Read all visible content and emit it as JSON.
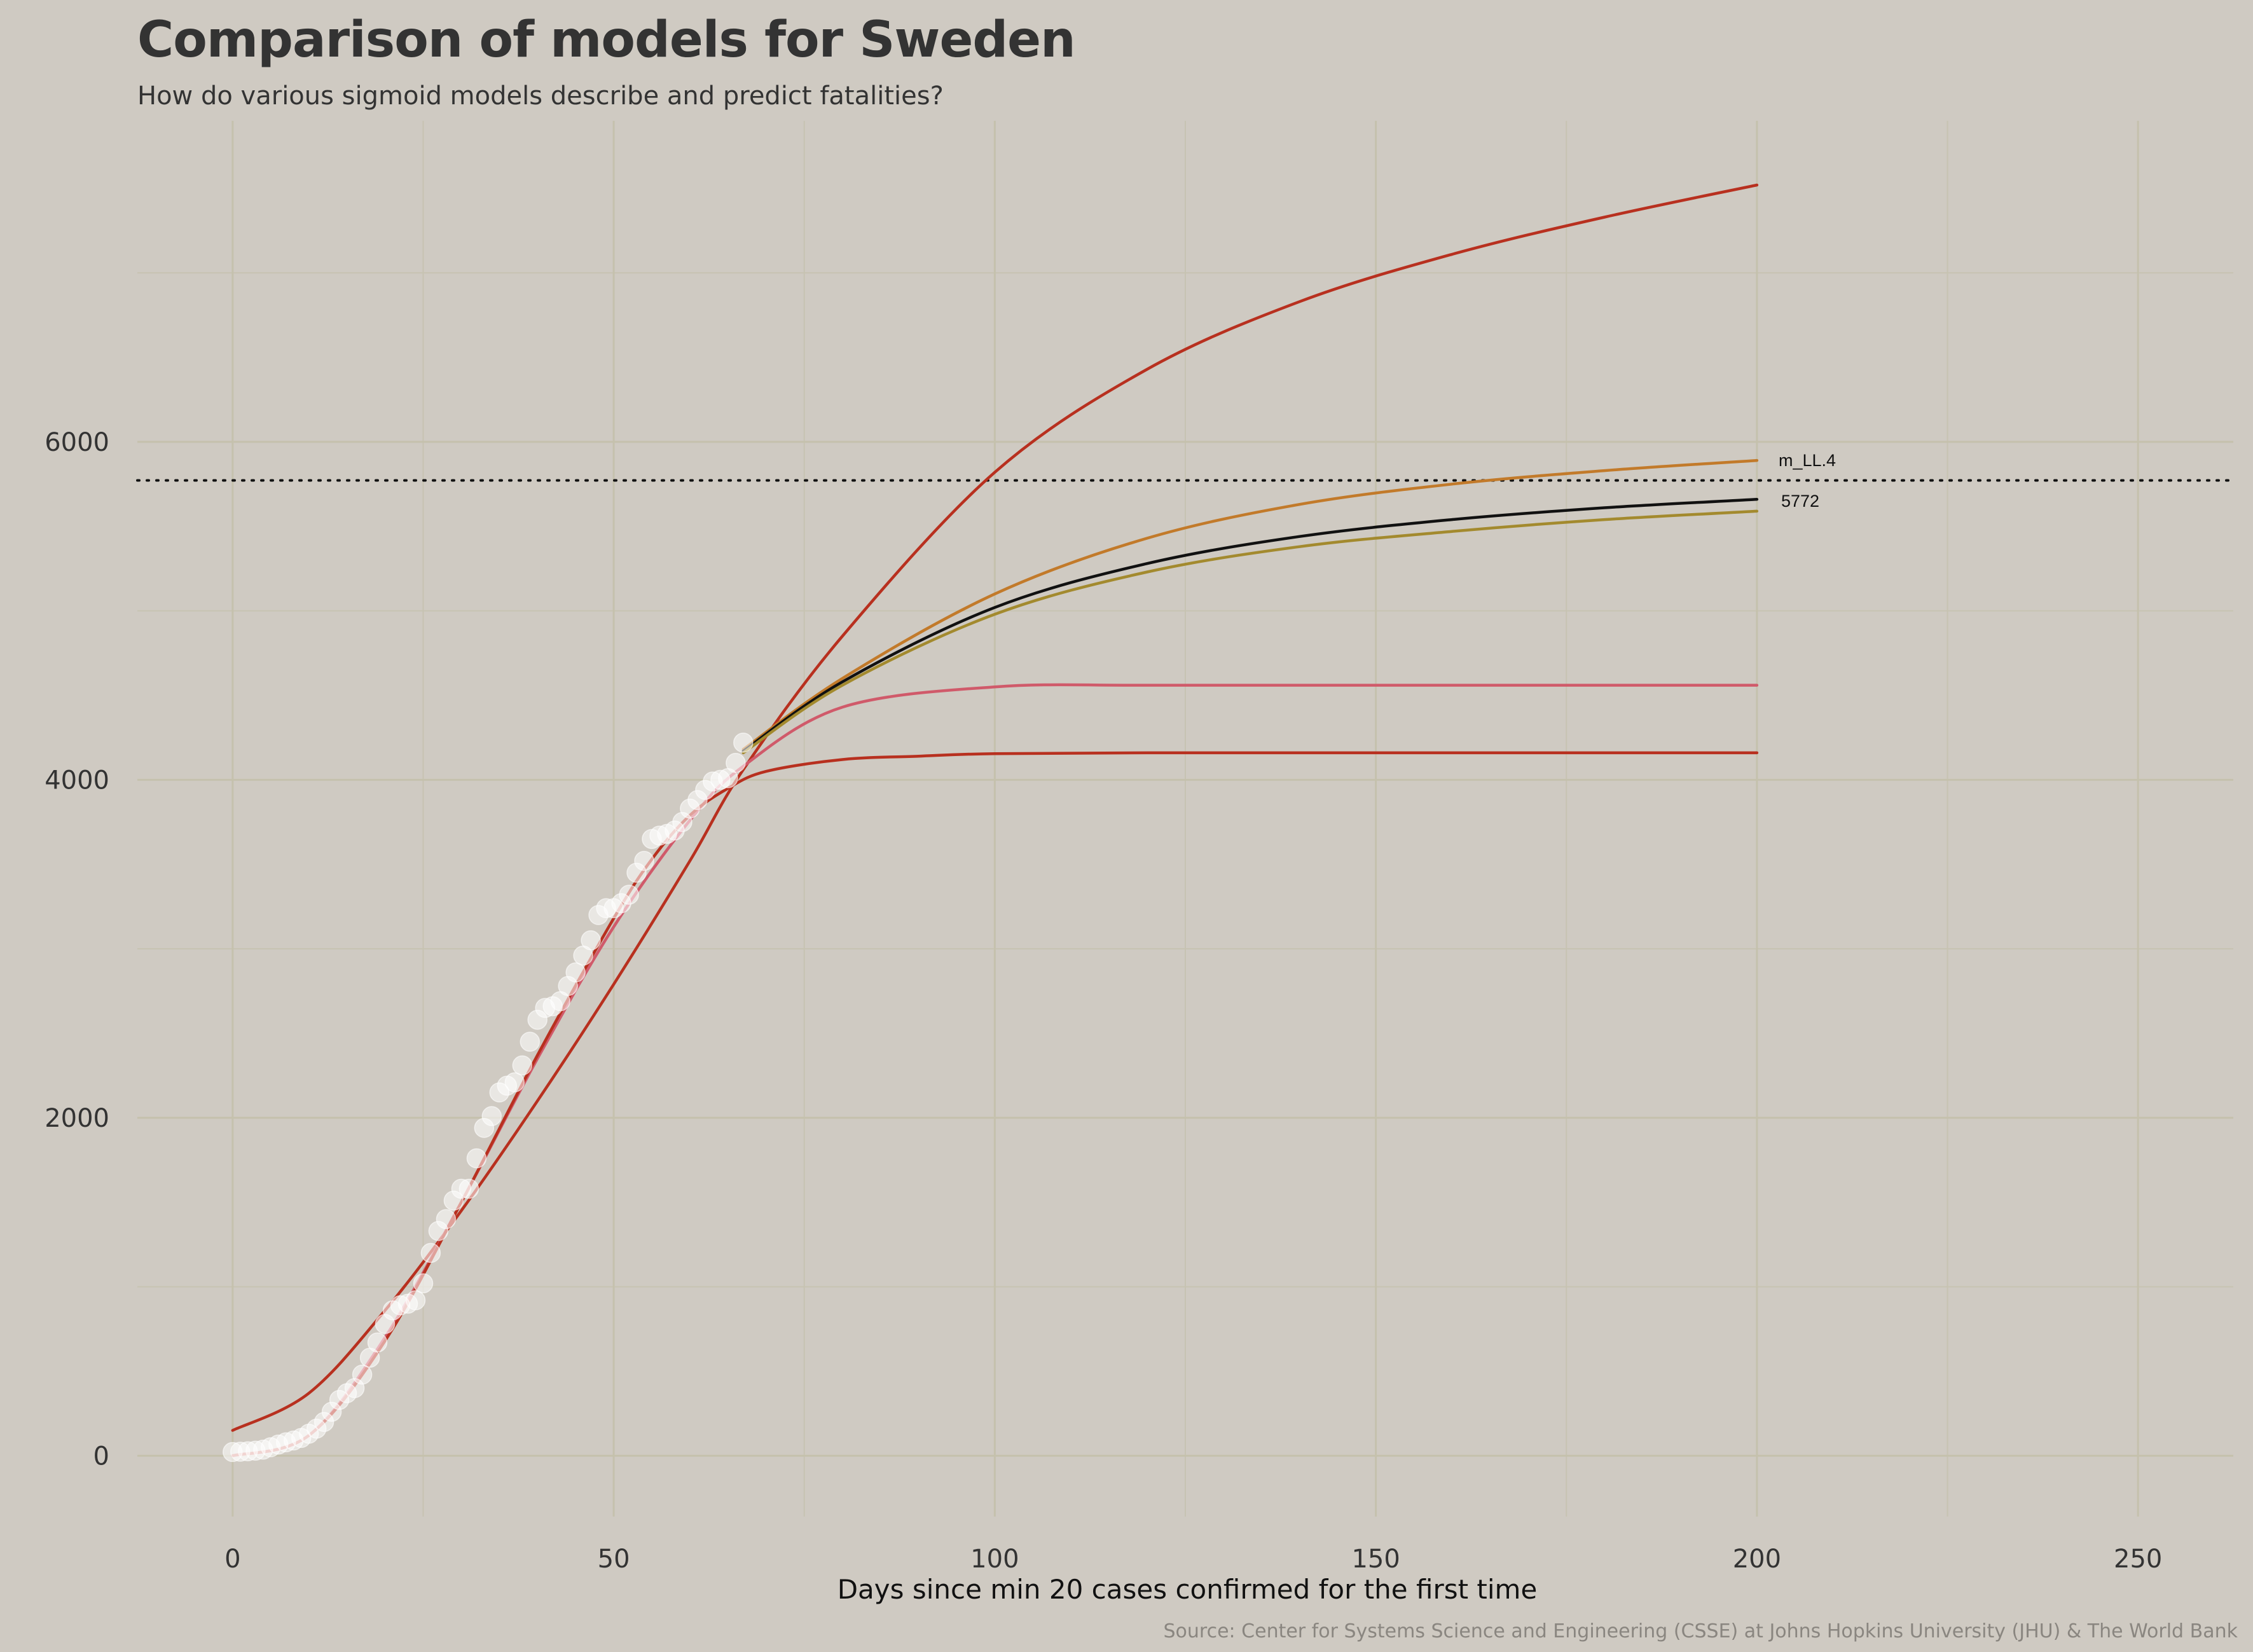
{
  "chart_data": {
    "type": "line",
    "title": "Comparison of models for Sweden",
    "subtitle": "How do various sigmoid models describe and predict fatalities?",
    "xlabel": "Days since min 20 cases confirmed for the first time",
    "ylabel": "",
    "caption": "Source: Center for Systems Science and Engineering (CSSE) at Johns Hopkins University (JHU) & The World Bank",
    "xlim": [
      -12.5,
      262.5
    ],
    "ylim": [
      -360,
      7900
    ],
    "x_ticks": [
      0,
      50,
      100,
      150,
      200,
      250
    ],
    "y_ticks": [
      0,
      2000,
      4000,
      6000
    ],
    "grid": true,
    "reference_line": {
      "y": 5772,
      "style": "dotted",
      "label": "5772",
      "color": "#111111"
    },
    "series_label": "m_LL.4",
    "observed": {
      "name": "",
      "marker": "circle",
      "color": "#ffffff",
      "points": [
        [
          0,
          22
        ],
        [
          1,
          24
        ],
        [
          2,
          26
        ],
        [
          3,
          30
        ],
        [
          4,
          36
        ],
        [
          5,
          50
        ],
        [
          6,
          66
        ],
        [
          7,
          79
        ],
        [
          8,
          90
        ],
        [
          9,
          105
        ],
        [
          10,
          130
        ],
        [
          11,
          160
        ],
        [
          12,
          200
        ],
        [
          13,
          260
        ],
        [
          14,
          330
        ],
        [
          15,
          370
        ],
        [
          16,
          400
        ],
        [
          17,
          480
        ],
        [
          18,
          580
        ],
        [
          19,
          670
        ],
        [
          20,
          780
        ],
        [
          21,
          860
        ],
        [
          22,
          890
        ],
        [
          23,
          900
        ],
        [
          24,
          920
        ],
        [
          25,
          1020
        ],
        [
          26,
          1200
        ],
        [
          27,
          1330
        ],
        [
          28,
          1400
        ],
        [
          29,
          1510
        ],
        [
          30,
          1580
        ],
        [
          31,
          1580
        ],
        [
          32,
          1760
        ],
        [
          33,
          1940
        ],
        [
          34,
          2010
        ],
        [
          35,
          2150
        ],
        [
          36,
          2190
        ],
        [
          37,
          2210
        ],
        [
          38,
          2310
        ],
        [
          39,
          2450
        ],
        [
          40,
          2580
        ],
        [
          41,
          2650
        ],
        [
          42,
          2660
        ],
        [
          43,
          2690
        ],
        [
          44,
          2780
        ],
        [
          45,
          2860
        ],
        [
          46,
          2960
        ],
        [
          47,
          3050
        ],
        [
          48,
          3200
        ],
        [
          49,
          3240
        ],
        [
          50,
          3240
        ],
        [
          51,
          3270
        ],
        [
          52,
          3320
        ],
        [
          53,
          3450
        ],
        [
          54,
          3520
        ],
        [
          55,
          3650
        ],
        [
          56,
          3670
        ],
        [
          57,
          3680
        ],
        [
          58,
          3700
        ],
        [
          59,
          3750
        ],
        [
          60,
          3830
        ],
        [
          61,
          3880
        ],
        [
          62,
          3940
        ],
        [
          63,
          3990
        ],
        [
          64,
          4000
        ],
        [
          65,
          4010
        ],
        [
          66,
          4100
        ],
        [
          67,
          4220
        ]
      ]
    },
    "series": [
      {
        "name": "",
        "color": "#b8301f",
        "x": [
          0,
          10,
          20,
          30,
          40,
          50,
          60,
          67,
          80,
          100,
          120,
          140,
          160,
          180,
          200
        ],
        "y": [
          150,
          370,
          860,
          1450,
          2100,
          2790,
          3520,
          4060,
          4850,
          5820,
          6430,
          6830,
          7110,
          7330,
          7520
        ]
      },
      {
        "name": "m_LL.4",
        "color": "#c27a2a",
        "x": [
          67,
          80,
          100,
          120,
          140,
          160,
          180,
          200
        ],
        "y": [
          4180,
          4600,
          5100,
          5430,
          5630,
          5750,
          5830,
          5890
        ]
      },
      {
        "name": "",
        "color": "#111111",
        "x": [
          67,
          80,
          100,
          120,
          140,
          160,
          180,
          200
        ],
        "y": [
          4170,
          4580,
          5020,
          5280,
          5440,
          5540,
          5610,
          5660
        ]
      },
      {
        "name": "",
        "color": "#a38a2e",
        "x": [
          67,
          80,
          100,
          120,
          140,
          160,
          180,
          200
        ],
        "y": [
          4160,
          4560,
          4980,
          5230,
          5380,
          5470,
          5540,
          5590
        ]
      },
      {
        "name": "",
        "color": "#d05a6a",
        "x": [
          0,
          10,
          20,
          30,
          40,
          50,
          60,
          67,
          80,
          100,
          120,
          150,
          200
        ],
        "y": [
          0,
          120,
          700,
          1500,
          2350,
          3130,
          3760,
          4080,
          4430,
          4550,
          4560,
          4560,
          4560
        ]
      },
      {
        "name": "",
        "color": "#b8301f",
        "x": [
          0,
          10,
          20,
          30,
          40,
          50,
          55,
          60,
          65,
          70,
          80,
          90,
          100,
          120,
          150,
          200
        ],
        "y": [
          0,
          120,
          680,
          1500,
          2370,
          3180,
          3530,
          3790,
          3950,
          4050,
          4120,
          4140,
          4155,
          4160,
          4160,
          4160
        ]
      }
    ]
  }
}
